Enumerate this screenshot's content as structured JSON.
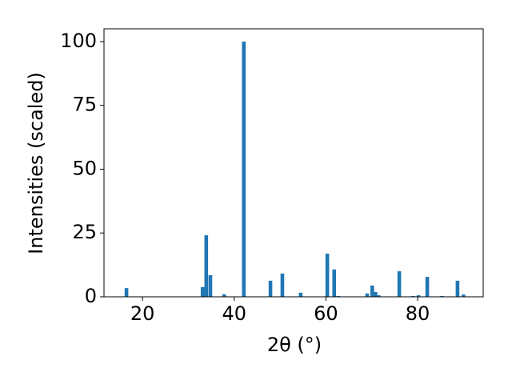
{
  "chart_data": {
    "type": "bar",
    "xlabel": "2θ (°)",
    "ylabel": "Intensities (scaled)",
    "color": "#1f77b4",
    "x": [
      16.5,
      33.1,
      33.9,
      34.8,
      37.8,
      42.1,
      47.9,
      50.5,
      54.5,
      60.3,
      61.8,
      62.7,
      69.0,
      70.1,
      70.8,
      71.5,
      76.0,
      79.0,
      80.2,
      82.1,
      85.3,
      88.7,
      90.0
    ],
    "values": [
      3.4,
      3.8,
      24.1,
      8.5,
      1.0,
      100,
      6.3,
      9.1,
      1.6,
      16.9,
      10.7,
      0.3,
      1.3,
      4.4,
      1.9,
      0.6,
      10.0,
      0.3,
      0.6,
      7.8,
      0.3,
      6.3,
      0.9
    ],
    "xlim": [
      11.6,
      94.3
    ],
    "ylim": [
      0,
      105
    ],
    "xticks": [
      20,
      40,
      60,
      80
    ],
    "yticks": [
      0,
      25,
      50,
      75,
      100
    ]
  }
}
